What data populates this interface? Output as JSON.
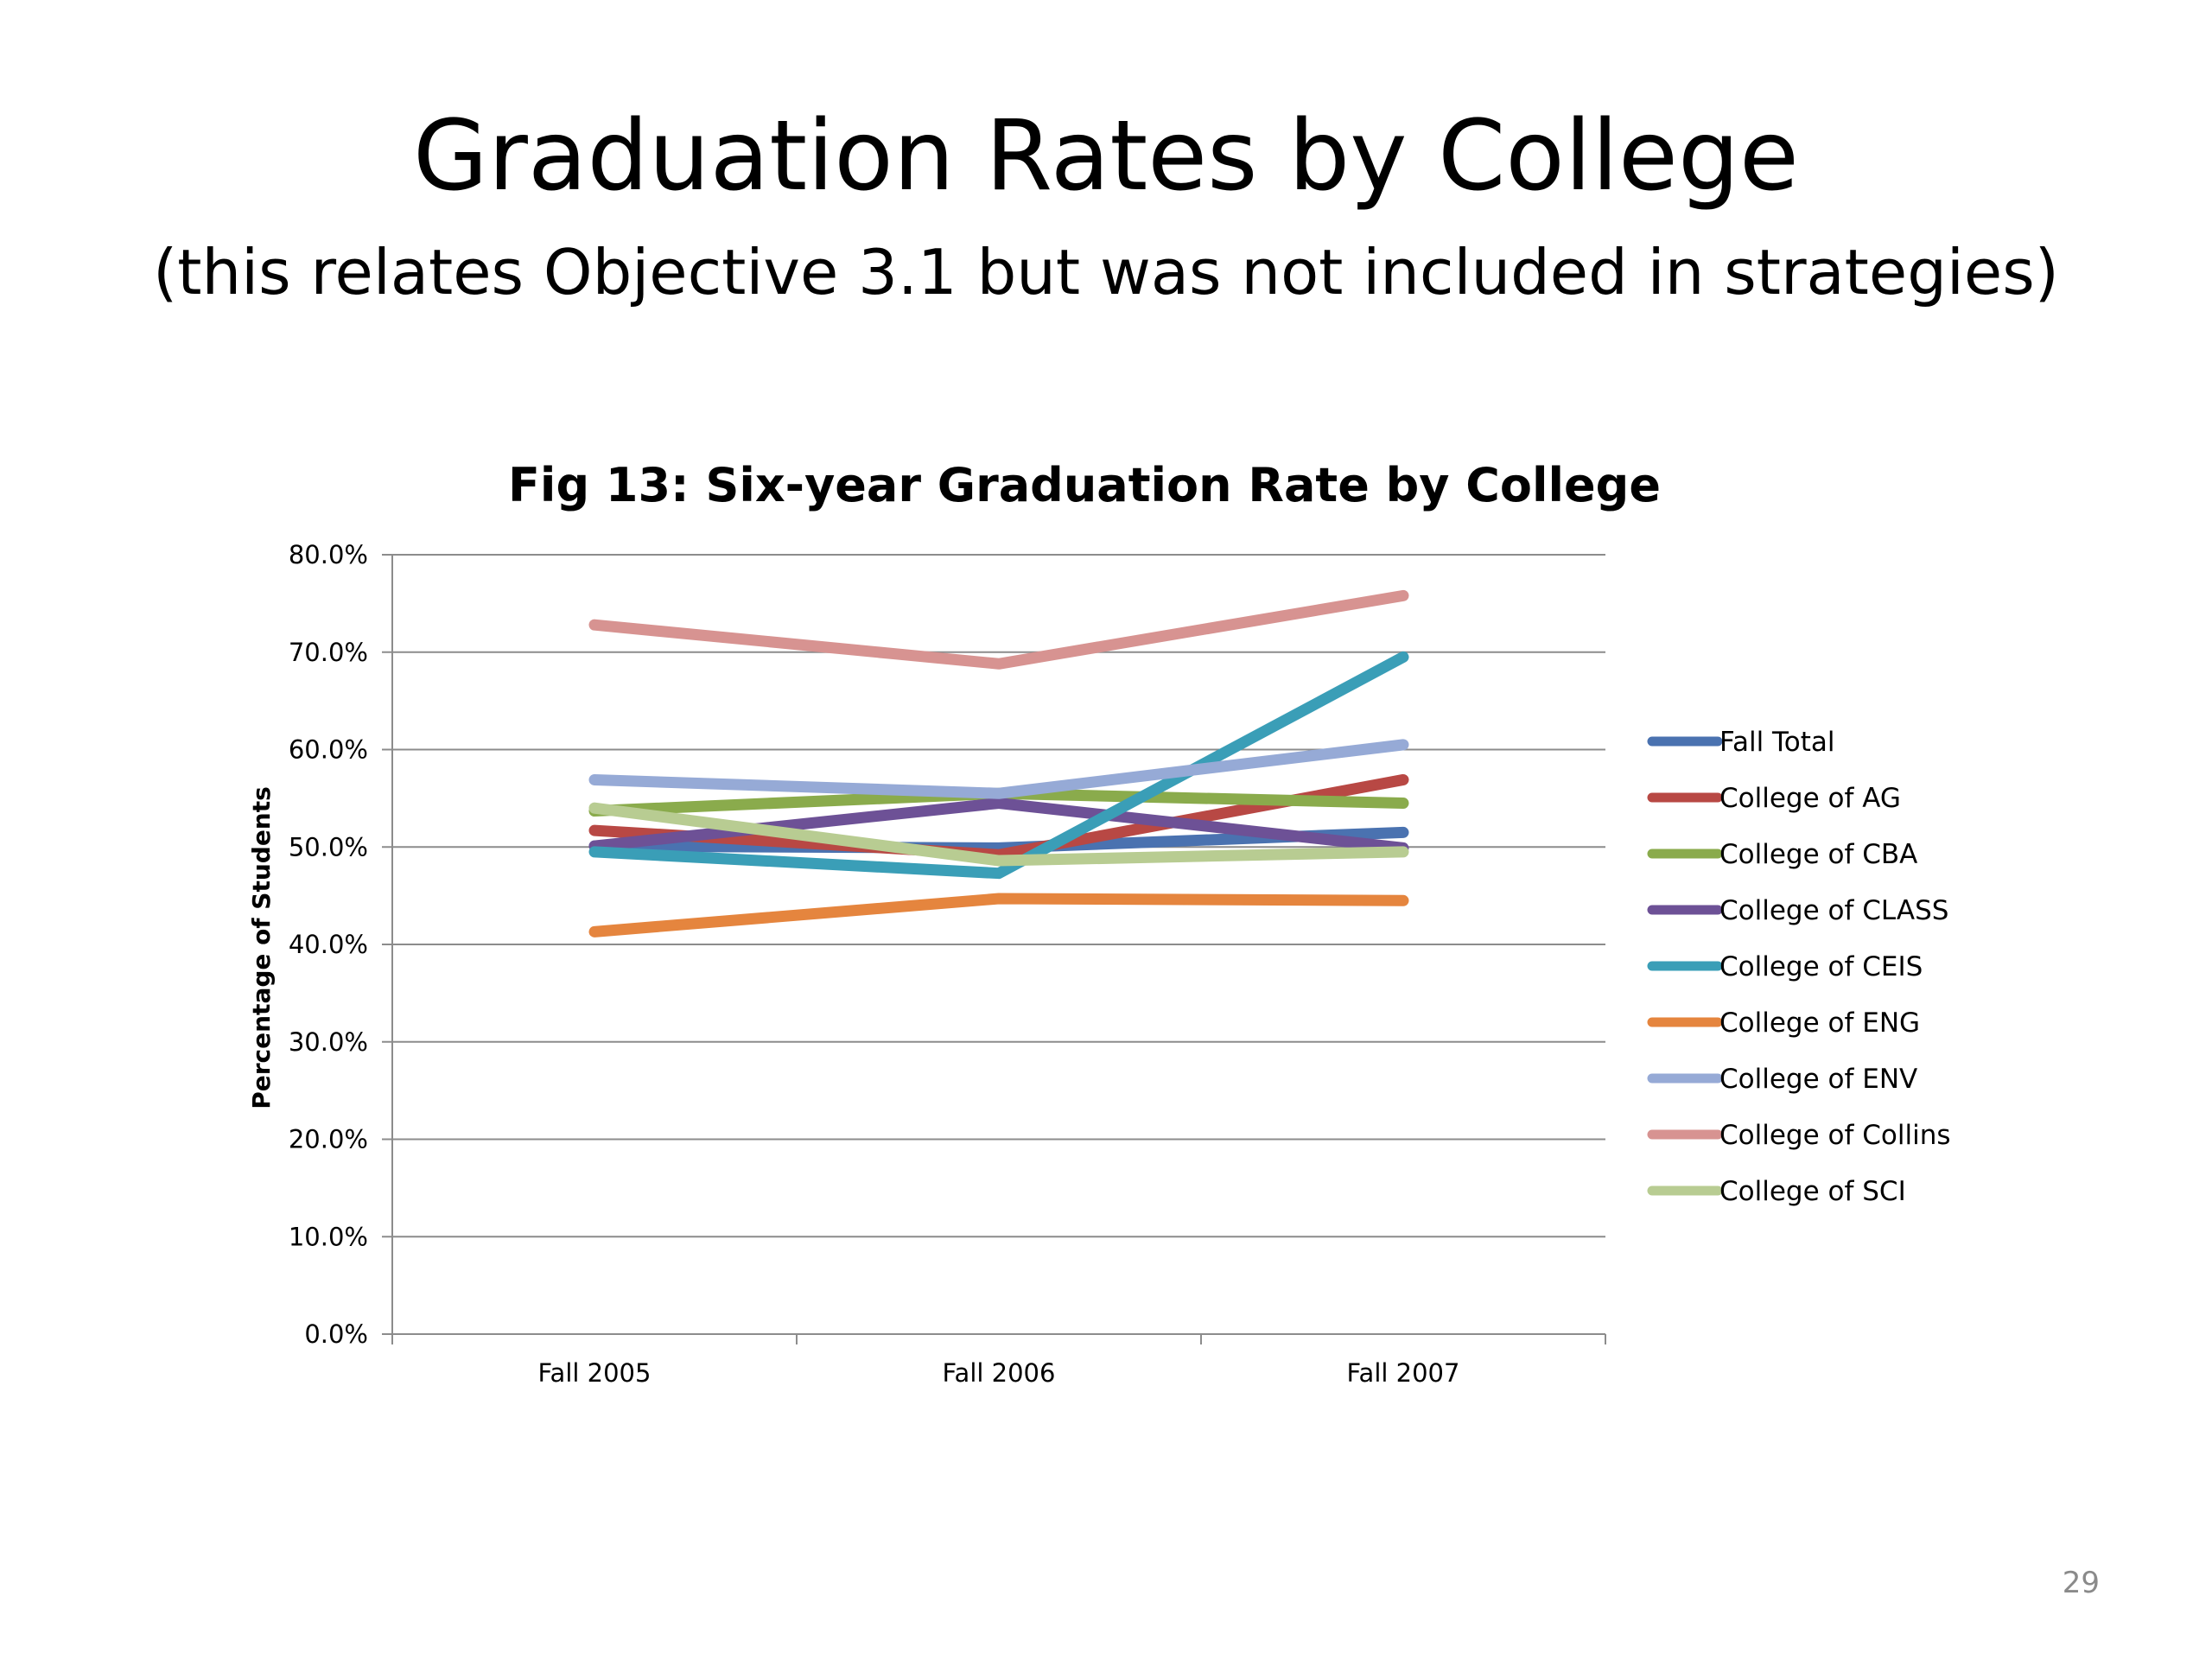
{
  "slide": {
    "title": "Graduation Rates by College",
    "subtitle": "(this relates Objective 3.1 but was not included in strategies)",
    "page_number": "29"
  },
  "chart_data": {
    "type": "line",
    "title": "Fig 13: Six-year Graduation Rate by College",
    "xlabel": "",
    "ylabel": "Percentage of Students",
    "categories": [
      "Fall 2005",
      "Fall 2006",
      "Fall 2007"
    ],
    "ylim": [
      0,
      80
    ],
    "y_ticks": [
      "0.0%",
      "10.0%",
      "20.0%",
      "30.0%",
      "40.0%",
      "50.0%",
      "60.0%",
      "70.0%",
      "80.0%"
    ],
    "grid": true,
    "legend_position": "right",
    "series": [
      {
        "name": "Fall Total",
        "color": "#4a72b0",
        "values": [
          50.1,
          49.9,
          51.5
        ]
      },
      {
        "name": "College of AG",
        "color": "#b84844",
        "values": [
          51.7,
          49.2,
          56.9
        ]
      },
      {
        "name": "College of CBA",
        "color": "#8aab4c",
        "values": [
          53.7,
          55.5,
          54.5
        ]
      },
      {
        "name": "College of CLASS",
        "color": "#6d5196",
        "values": [
          50.1,
          54.5,
          49.9
        ]
      },
      {
        "name": "College of CEIS",
        "color": "#3a9eb7",
        "values": [
          49.5,
          47.3,
          69.5
        ]
      },
      {
        "name": "College of ENG",
        "color": "#e5853e",
        "values": [
          41.3,
          44.7,
          44.5
        ]
      },
      {
        "name": "College of ENV",
        "color": "#96aad6",
        "values": [
          56.9,
          55.5,
          60.5
        ]
      },
      {
        "name": "College of Collins",
        "color": "#d79391",
        "values": [
          72.8,
          68.8,
          75.8
        ]
      },
      {
        "name": "College of SCI",
        "color": "#b8cc92",
        "values": [
          54.0,
          48.6,
          49.5
        ]
      }
    ]
  }
}
